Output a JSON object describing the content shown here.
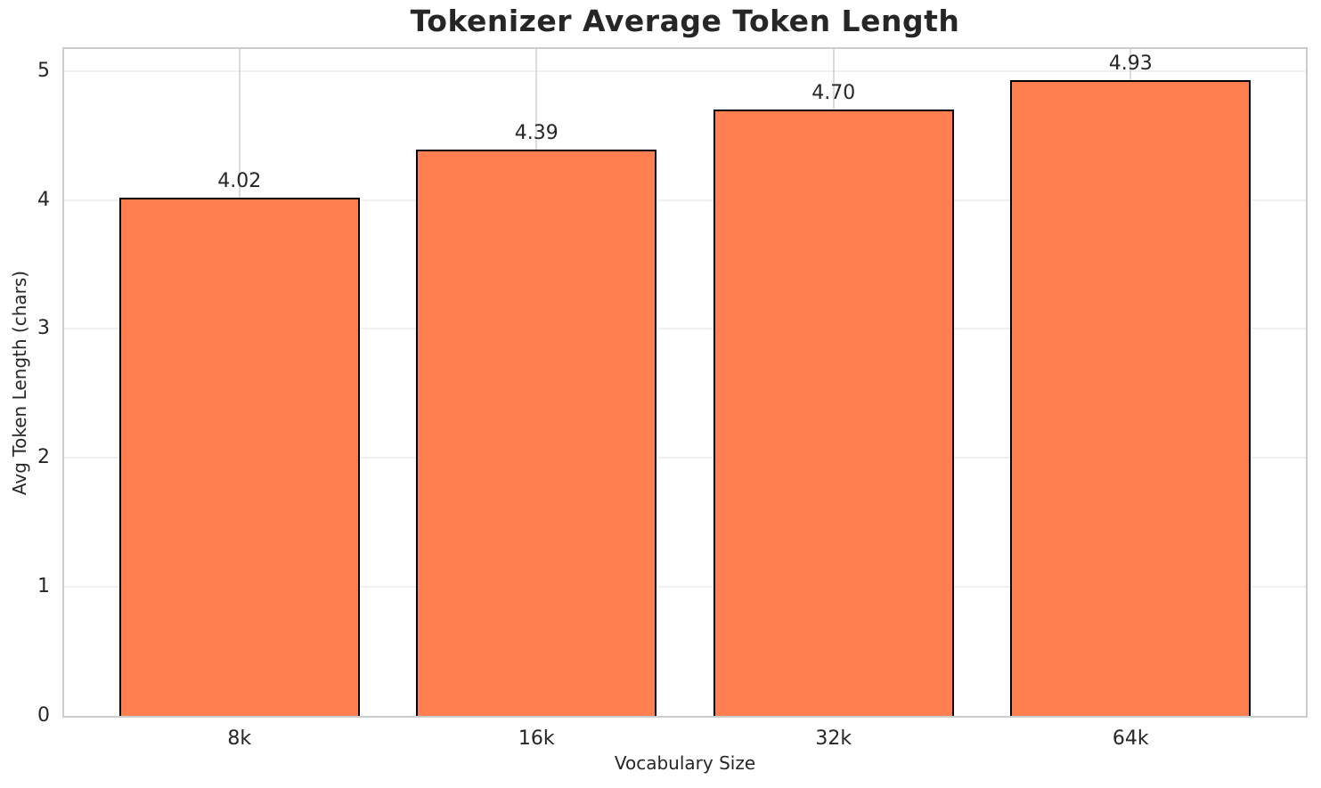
{
  "chart_data": {
    "type": "bar",
    "title": "Tokenizer Average Token Length",
    "xlabel": "Vocabulary Size",
    "ylabel": "Avg Token Length (chars)",
    "categories": [
      "8k",
      "16k",
      "32k",
      "64k"
    ],
    "values": [
      4.02,
      4.39,
      4.7,
      4.93
    ],
    "value_labels": [
      "4.02",
      "4.39",
      "4.70",
      "4.93"
    ],
    "yticks": [
      0,
      1,
      2,
      3,
      4,
      5
    ],
    "ylim": [
      0,
      5.17
    ],
    "grid": "both",
    "legend": "none",
    "colors": {
      "bar_fill": "#FF7F50",
      "bar_edge": "#000000",
      "grid_horizontal": "#F0F0F0",
      "grid_vertical": "#DCDCDC",
      "spine": "#CCCCCC",
      "text": "#262626",
      "background": "#FFFFFF"
    }
  }
}
